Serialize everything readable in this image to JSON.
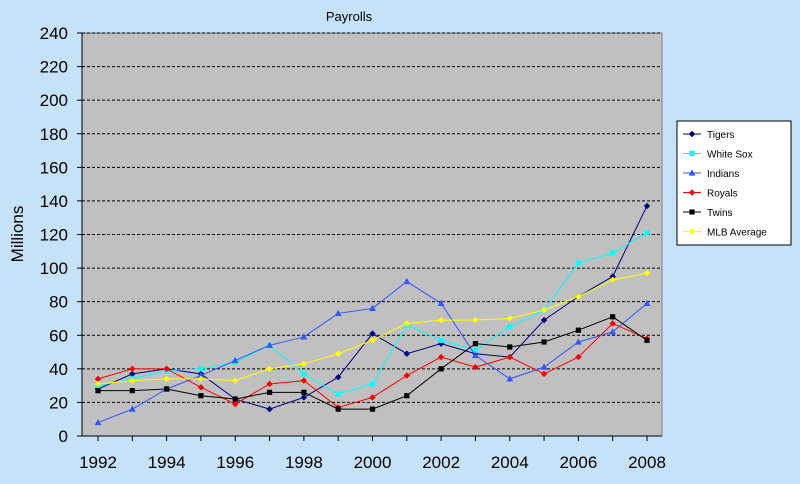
{
  "chart_data": {
    "type": "line",
    "title": "Payrolls",
    "xlabel": "",
    "ylabel": "Millions",
    "x": [
      1992,
      1993,
      1994,
      1995,
      1996,
      1997,
      1998,
      1999,
      2000,
      2001,
      2002,
      2003,
      2004,
      2005,
      2006,
      2007,
      2008
    ],
    "x_tick_labels": [
      "1992",
      "1994",
      "1996",
      "1998",
      "2000",
      "2002",
      "2004",
      "2006",
      "2008"
    ],
    "y_tick_labels": [
      "0",
      "20",
      "40",
      "60",
      "80",
      "100",
      "120",
      "140",
      "160",
      "180",
      "200",
      "220",
      "240"
    ],
    "ylim": [
      0,
      240
    ],
    "grid": "horizontal dashed",
    "legend_position": "right",
    "plot_background": "#c0c0c0",
    "series": [
      {
        "name": "Tigers",
        "color": "#000080",
        "marker": "diamond",
        "values": [
          28,
          37,
          40,
          37,
          22,
          16,
          23,
          35,
          61,
          49,
          55,
          49,
          47,
          69,
          83,
          95,
          137
        ]
      },
      {
        "name": "White Sox",
        "color": "#00ffff",
        "marker": "square",
        "values": [
          30,
          34,
          39,
          40,
          44,
          54,
          37,
          25,
          31,
          66,
          57,
          51,
          65,
          75,
          103,
          109,
          121
        ]
      },
      {
        "name": "Indians",
        "color": "#3355ff",
        "marker": "triangle",
        "values": [
          8,
          16,
          28,
          36,
          45,
          54,
          59,
          73,
          76,
          92,
          79,
          48,
          34,
          41,
          56,
          62,
          79
        ]
      },
      {
        "name": "Royals",
        "color": "#ff0000",
        "marker": "diamond",
        "values": [
          34,
          40,
          40,
          29,
          19,
          31,
          33,
          17,
          23,
          36,
          47,
          41,
          47,
          37,
          47,
          67,
          58
        ]
      },
      {
        "name": "Twins",
        "color": "#000000",
        "marker": "square",
        "values": [
          27,
          27,
          28,
          24,
          22,
          26,
          26,
          16,
          16,
          24,
          40,
          55,
          53,
          56,
          63,
          71,
          57
        ]
      },
      {
        "name": "MLB Average",
        "color": "#ffff00",
        "marker": "diamond",
        "values": [
          31,
          33,
          34,
          34,
          33,
          40,
          43,
          49,
          57,
          67,
          69,
          69,
          70,
          75,
          83,
          93,
          97
        ]
      }
    ]
  }
}
